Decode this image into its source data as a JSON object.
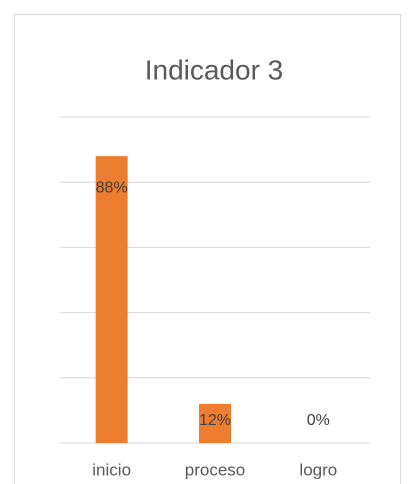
{
  "chart_data": {
    "type": "bar",
    "title": "Indicador 3",
    "categories": [
      "inicio",
      "proceso",
      "logro"
    ],
    "values": [
      88,
      12,
      0
    ],
    "value_labels": [
      "88%",
      "12%",
      "0%"
    ],
    "color": "#ed7d31",
    "ylim": [
      0,
      100
    ],
    "yticks": [
      0,
      20,
      40,
      60,
      80,
      100
    ],
    "grid": true
  }
}
